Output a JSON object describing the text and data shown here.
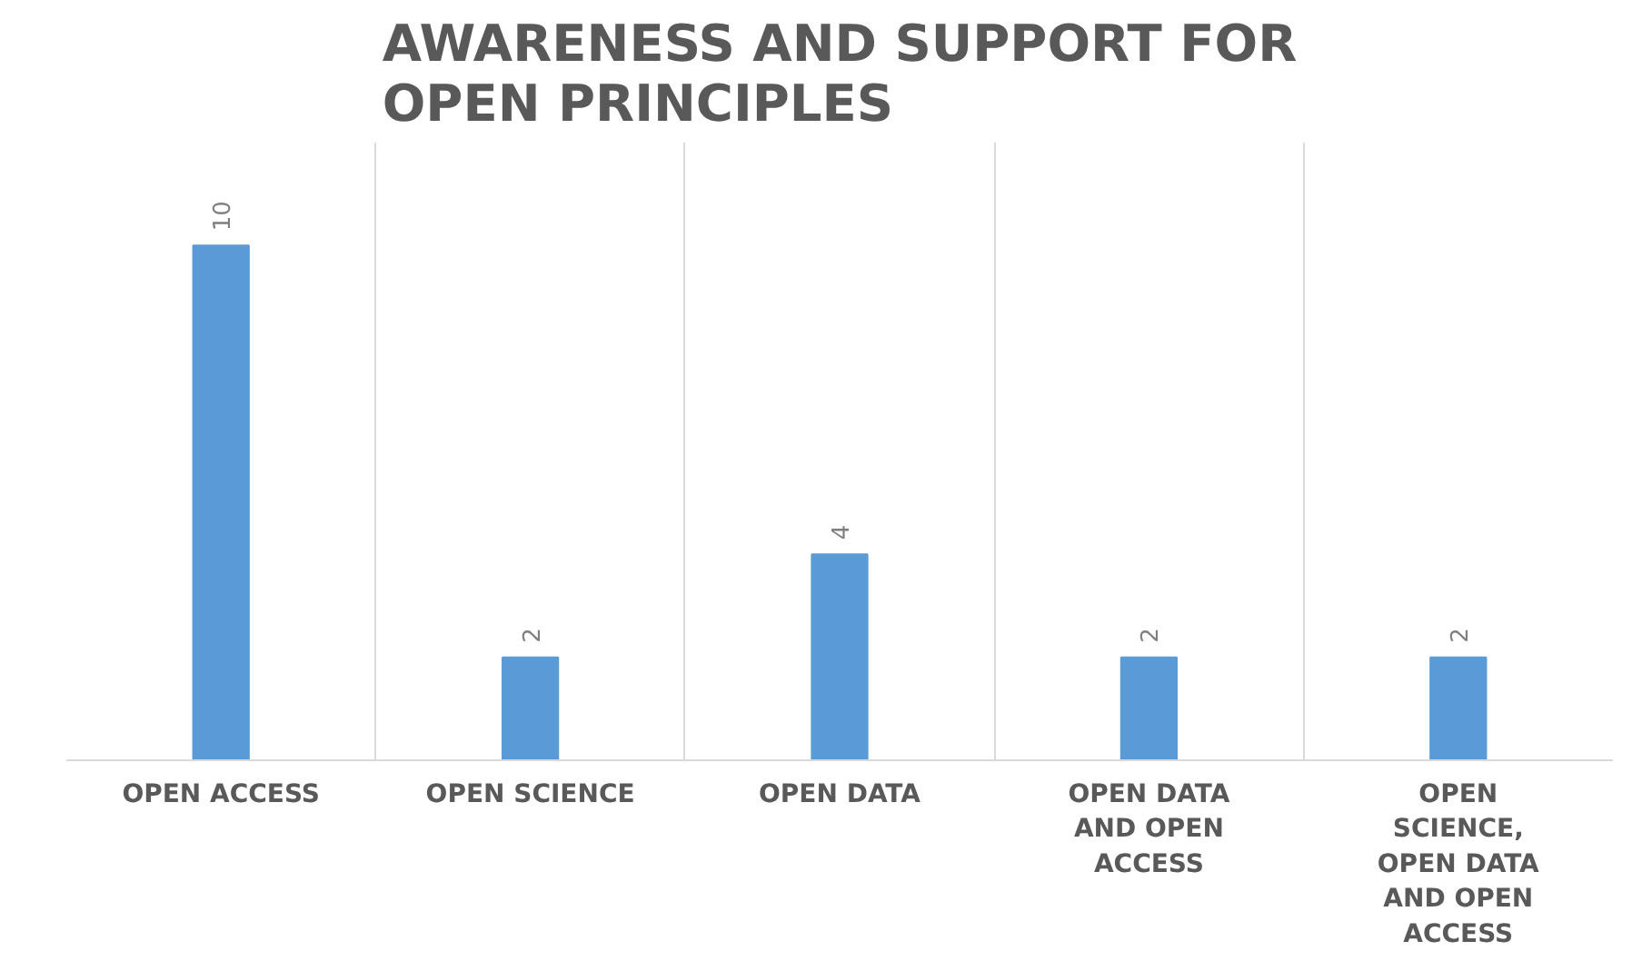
{
  "chart_data": {
    "type": "bar",
    "title": "AWARENESS AND SUPPORT FOR OPEN PRINCIPLES",
    "categories": [
      "OPEN ACCESS",
      "OPEN SCIENCE",
      "OPEN DATA",
      "OPEN DATA AND OPEN ACCESS",
      "OPEN SCIENCE, OPEN DATA AND OPEN ACCESS"
    ],
    "values": [
      10,
      2,
      4,
      2,
      2
    ],
    "color": "#5b9bd5",
    "data_labels": true,
    "grid": "x",
    "tick_labels": "x"
  }
}
